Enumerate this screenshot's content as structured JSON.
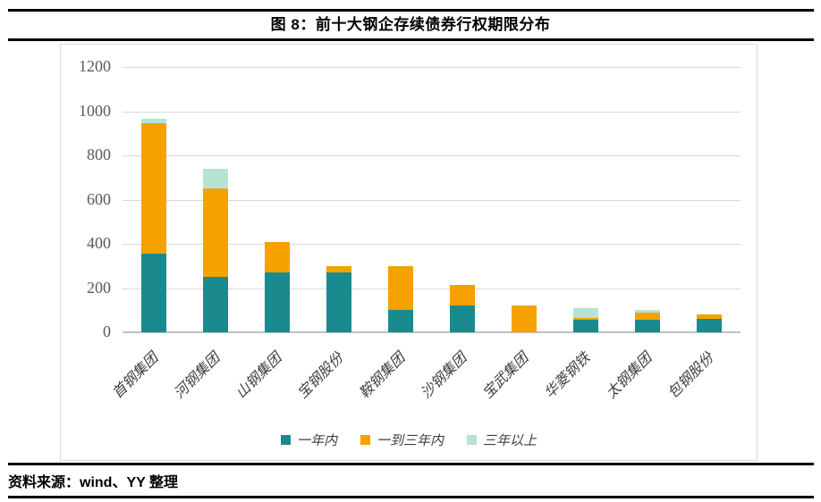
{
  "figure": {
    "title": "图 8：前十大钢企存续债券行权期限分布",
    "source": "资料来源：wind、YY 整理"
  },
  "chart_data": {
    "type": "bar",
    "stacked": true,
    "title": "前十大钢企存续债券行权期限分布",
    "xlabel": "",
    "ylabel": "",
    "grid": true,
    "legend_position": "bottom",
    "ylim": [
      0,
      1200
    ],
    "yticks": [
      0,
      200,
      400,
      600,
      800,
      1000,
      1200
    ],
    "categories": [
      "首钢集团",
      "河钢集团",
      "山钢集团",
      "宝钢股份",
      "鞍钢集团",
      "沙钢集团",
      "宝武集团",
      "华菱钢铁",
      "太钢集团",
      "包钢股份"
    ],
    "series": [
      {
        "name": "一年内",
        "color": "#1A8A8E",
        "values": [
          355,
          250,
          270,
          270,
          100,
          120,
          0,
          55,
          55,
          62
        ]
      },
      {
        "name": "一到三年内",
        "color": "#F5A100",
        "values": [
          590,
          400,
          140,
          30,
          200,
          95,
          120,
          10,
          35,
          18
        ]
      },
      {
        "name": "三年以上",
        "color": "#B7E3D4",
        "values": [
          20,
          90,
          0,
          0,
          0,
          0,
          0,
          45,
          10,
          0
        ]
      }
    ],
    "totals": [
      965,
      740,
      410,
      300,
      300,
      215,
      120,
      110,
      100,
      80
    ]
  },
  "style_colors": {
    "gridline": "#d9d9d9",
    "axis_line": "#c0c0c0",
    "tick_text": "#595959",
    "rule": "#000000"
  }
}
